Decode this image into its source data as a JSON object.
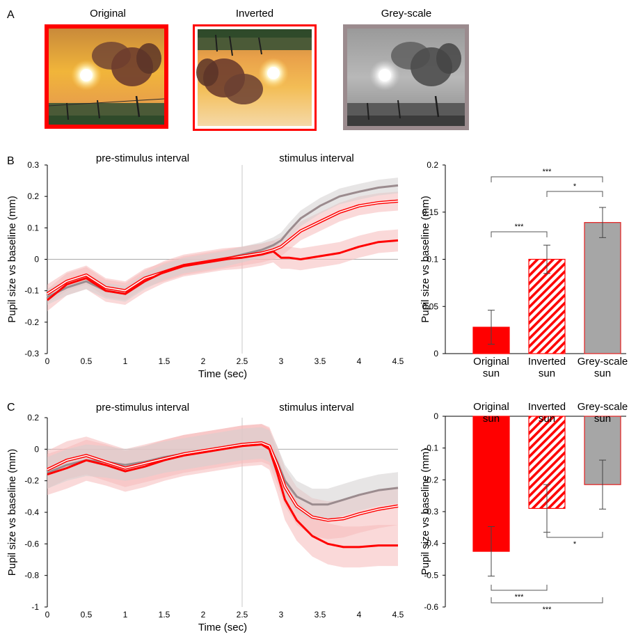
{
  "panel_labels": {
    "a": "A",
    "b": "B",
    "c": "C"
  },
  "images": [
    {
      "label": "Original",
      "frame_color": "#ff0000"
    },
    {
      "label": "Inverted",
      "frame_color": "#ff0000"
    },
    {
      "label": "Grey-scale",
      "frame_color": "#9b8b8e"
    }
  ],
  "chart_data": [
    {
      "id": "B-line",
      "type": "line",
      "annotations": [
        "pre-stimulus interval",
        "stimulus interval"
      ],
      "xlabel": "Time (sec)",
      "ylabel": "Pupil size vs baseline (mm)",
      "xlim": [
        0,
        4.5
      ],
      "ylim": [
        -0.3,
        0.3
      ],
      "x_ticks": [
        "0",
        "0.5",
        "1",
        "1.5",
        "2",
        "2.5",
        "3",
        "3.5",
        "4",
        "4.5"
      ],
      "y_ticks": [
        "-0.3",
        "-0.2",
        "-0.1",
        "0",
        "0.1",
        "0.2",
        "0.3"
      ],
      "stimulus_onset": 2.5,
      "x": [
        0,
        0.25,
        0.5,
        0.75,
        1.0,
        1.25,
        1.5,
        1.75,
        2.0,
        2.25,
        2.5,
        2.75,
        2.9,
        3.0,
        3.1,
        3.25,
        3.5,
        3.75,
        4.0,
        4.25,
        4.5
      ],
      "series": [
        {
          "key": "original",
          "color": "#ff0000",
          "error": 0.035,
          "values": [
            -0.13,
            -0.08,
            -0.06,
            -0.1,
            -0.11,
            -0.07,
            -0.04,
            -0.02,
            -0.01,
            0.0,
            0.005,
            0.015,
            0.025,
            0.005,
            0.005,
            0.0,
            0.01,
            0.02,
            0.04,
            0.055,
            0.06
          ]
        },
        {
          "key": "inverted",
          "color": "#ff0000",
          "error": 0.03,
          "values": [
            -0.11,
            -0.07,
            -0.05,
            -0.09,
            -0.1,
            -0.06,
            -0.04,
            -0.02,
            -0.01,
            0.0,
            0.01,
            0.02,
            0.03,
            0.04,
            0.06,
            0.09,
            0.12,
            0.15,
            0.17,
            0.18,
            0.185
          ]
        },
        {
          "key": "greyscale",
          "color": "#9b8b8e",
          "error": 0.025,
          "values": [
            -0.12,
            -0.09,
            -0.07,
            -0.1,
            -0.11,
            -0.07,
            -0.04,
            -0.02,
            -0.01,
            0.0,
            0.015,
            0.03,
            0.045,
            0.06,
            0.09,
            0.13,
            0.17,
            0.2,
            0.215,
            0.228,
            0.235
          ]
        }
      ]
    },
    {
      "id": "B-bar",
      "type": "bar",
      "categories": [
        "Original\nsun",
        "Inverted\nsun",
        "Grey-scale\nsun"
      ],
      "values": [
        0.028,
        0.1,
        0.139
      ],
      "errors": [
        0.018,
        0.015,
        0.016
      ],
      "ylabel": "Pupil size vs baseline (mm)",
      "ylim": [
        0,
        0.2
      ],
      "y_ticks": [
        "0",
        "0.05",
        "0.1",
        "0.15",
        "0.2"
      ],
      "significance": [
        {
          "from": 0,
          "to": 2,
          "label": "***"
        },
        {
          "from": 1,
          "to": 2,
          "label": "*"
        },
        {
          "from": 0,
          "to": 1,
          "label": "***"
        }
      ]
    },
    {
      "id": "C-line",
      "type": "line",
      "annotations": [
        "pre-stimulus interval",
        "stimulus interval"
      ],
      "xlabel": "Time (sec)",
      "ylabel": "Pupil size vs baseline (mm)",
      "xlim": [
        0,
        4.5
      ],
      "ylim": [
        -1,
        0.2
      ],
      "x_ticks": [
        "0",
        "0.5",
        "1",
        "1.5",
        "2",
        "2.5",
        "3",
        "3.5",
        "4",
        "4.5"
      ],
      "y_ticks": [
        "-1",
        "-0.8",
        "-0.6",
        "-0.4",
        "-0.2",
        "0",
        "0.2"
      ],
      "stimulus_onset": 2.5,
      "x": [
        0,
        0.25,
        0.5,
        0.75,
        1.0,
        1.25,
        1.5,
        1.75,
        2.0,
        2.25,
        2.5,
        2.75,
        2.85,
        2.95,
        3.05,
        3.2,
        3.4,
        3.6,
        3.8,
        4.0,
        4.25,
        4.5
      ],
      "series": [
        {
          "key": "original",
          "color": "#ff0000",
          "error": 0.13,
          "values": [
            -0.16,
            -0.12,
            -0.07,
            -0.1,
            -0.14,
            -0.11,
            -0.07,
            -0.04,
            -0.02,
            0.0,
            0.02,
            0.03,
            0.0,
            -0.15,
            -0.32,
            -0.45,
            -0.55,
            -0.6,
            -0.62,
            -0.62,
            -0.61,
            -0.61
          ]
        },
        {
          "key": "inverted",
          "color": "#ff0000",
          "error": 0.12,
          "values": [
            -0.13,
            -0.07,
            -0.04,
            -0.08,
            -0.12,
            -0.09,
            -0.06,
            -0.03,
            -0.01,
            0.01,
            0.03,
            0.04,
            0.02,
            -0.1,
            -0.24,
            -0.36,
            -0.43,
            -0.45,
            -0.44,
            -0.41,
            -0.38,
            -0.36
          ]
        },
        {
          "key": "greyscale",
          "color": "#9b8b8e",
          "error": 0.1,
          "values": [
            -0.15,
            -0.1,
            -0.07,
            -0.08,
            -0.1,
            -0.08,
            -0.05,
            -0.03,
            -0.01,
            0.01,
            0.03,
            0.04,
            0.02,
            -0.08,
            -0.2,
            -0.3,
            -0.35,
            -0.35,
            -0.32,
            -0.29,
            -0.26,
            -0.245
          ]
        }
      ]
    },
    {
      "id": "C-bar",
      "type": "bar",
      "categories": [
        "Original\nsun",
        "Inverted\nsun",
        "Grey-scale\nsun"
      ],
      "values": [
        -0.425,
        -0.29,
        -0.215
      ],
      "errors": [
        0.078,
        0.075,
        0.077
      ],
      "ylabel": "Pupil size vs baseline (mm)",
      "ylim": [
        -0.6,
        0
      ],
      "y_ticks": [
        "-0.6",
        "-0.5",
        "-0.4",
        "-0.3",
        "-0.2",
        "-0.1",
        "0"
      ],
      "significance": [
        {
          "from": 1,
          "to": 2,
          "label": "*"
        },
        {
          "from": 0,
          "to": 1,
          "label": "***"
        },
        {
          "from": 0,
          "to": 2,
          "label": "***"
        }
      ]
    }
  ]
}
